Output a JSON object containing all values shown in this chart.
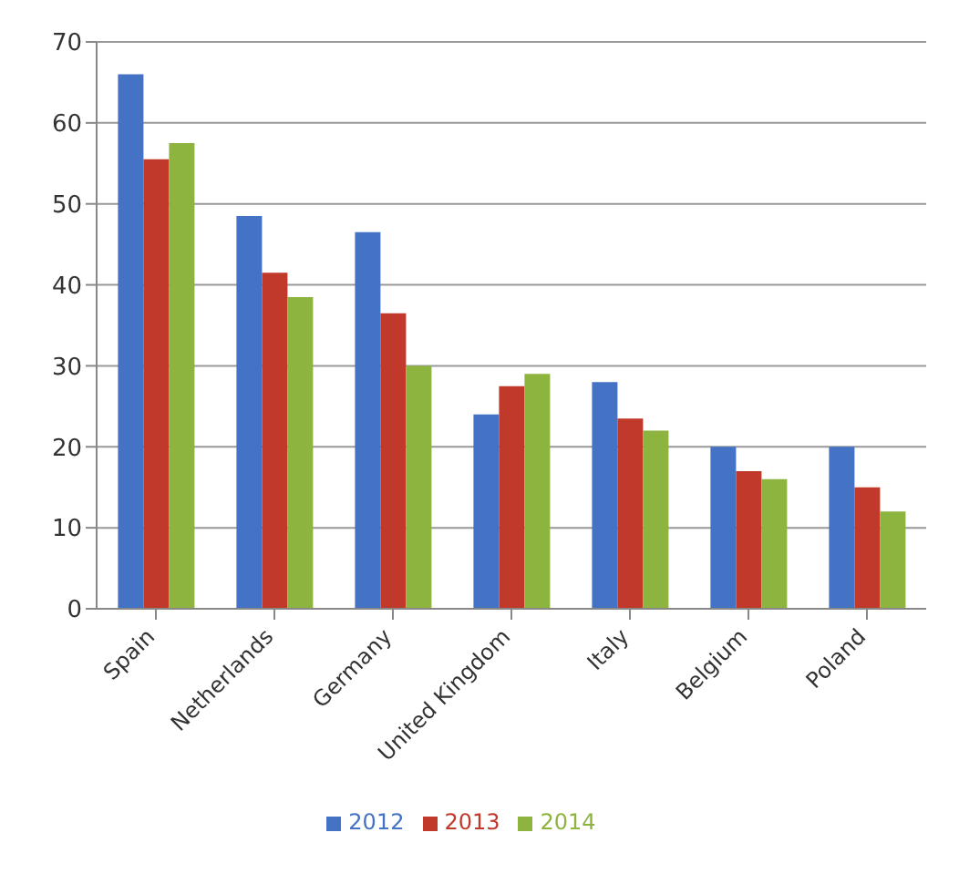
{
  "chart_data": {
    "type": "bar",
    "categories": [
      "Spain",
      "Netherlands",
      "Germany",
      "United Kingdom",
      "Italy",
      "Belgium",
      "Poland"
    ],
    "series": [
      {
        "name": "2012",
        "color": "#4472c4",
        "values": [
          66,
          48.5,
          46.5,
          24,
          28,
          20,
          20
        ]
      },
      {
        "name": "2013",
        "color": "#c0392b",
        "values": [
          55.5,
          41.5,
          36.5,
          27.5,
          23.5,
          17,
          15
        ]
      },
      {
        "name": "2014",
        "color": "#8db43e",
        "values": [
          57.5,
          38.5,
          30,
          29,
          22,
          16,
          12
        ]
      }
    ],
    "ylim": [
      0,
      70
    ],
    "yticks": [
      0,
      10,
      20,
      30,
      40,
      50,
      60,
      70
    ],
    "grid": "y",
    "legend": "bottom"
  }
}
